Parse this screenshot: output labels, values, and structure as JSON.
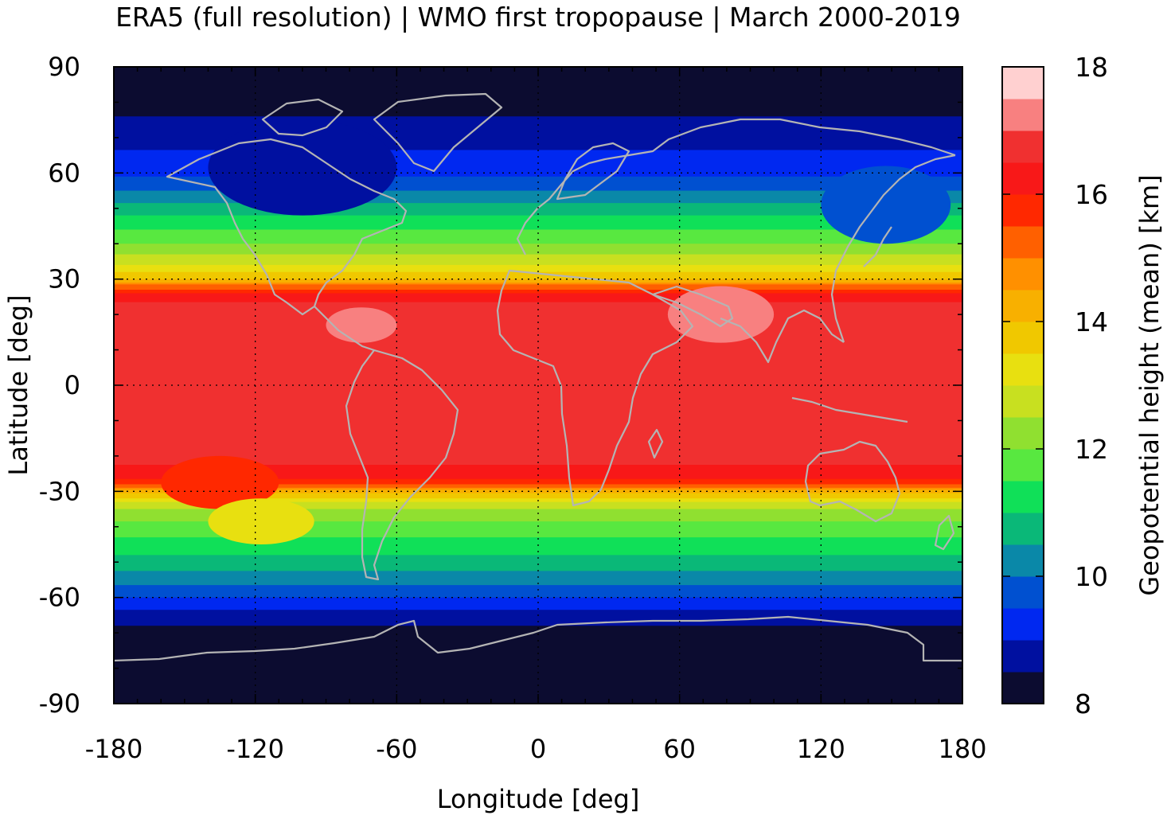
{
  "chart_data": {
    "type": "heatmap",
    "title": "ERA5 (full resolution) | WMO first tropopause | March 2000-2019",
    "xlabel": "Longitude [deg]",
    "ylabel": "Latitude [deg]",
    "xlim": [
      -180,
      180
    ],
    "ylim": [
      -90,
      90
    ],
    "x_ticks": [
      -180,
      -120,
      -60,
      0,
      60,
      120,
      180
    ],
    "y_ticks": [
      -90,
      -60,
      -30,
      0,
      30,
      60,
      90
    ],
    "x_tick_labels": [
      "-180",
      "-120",
      "-60",
      "0",
      "60",
      "120",
      "180"
    ],
    "y_tick_labels": [
      "-90",
      "-60",
      "-30",
      "0",
      "30",
      "60",
      "90"
    ],
    "grid": true,
    "coastlines": true,
    "colorbar": {
      "label": "Geopotential height (mean) [km]",
      "range": [
        8,
        18
      ],
      "ticks": [
        8,
        10,
        12,
        14,
        16,
        18
      ],
      "tick_labels": [
        "8",
        "10",
        "12",
        "14",
        "16",
        "18"
      ],
      "step": 0.5,
      "colors": [
        "#0c0c30",
        "#0010a0",
        "#0028f0",
        "#0050d0",
        "#0a88a8",
        "#0ab878",
        "#10e058",
        "#58e840",
        "#90e030",
        "#c8e020",
        "#e8e010",
        "#f0c800",
        "#f8b000",
        "#ff9000",
        "#ff6000",
        "#ff2800",
        "#f81818",
        "#f03030",
        "#f88080",
        "#ffd0d0"
      ]
    },
    "zonal_profile": {
      "lat": [
        90,
        80,
        70,
        60,
        55,
        50,
        45,
        40,
        35,
        30,
        28,
        25,
        20,
        10,
        0,
        -10,
        -20,
        -25,
        -28,
        -30,
        -33,
        -36,
        -40,
        -45,
        -50,
        -55,
        -60,
        -65,
        -70,
        -75,
        -90
      ],
      "height_km": [
        8.2,
        8.3,
        8.8,
        9.4,
        10.0,
        10.7,
        11.4,
        12.0,
        12.8,
        14.0,
        15.2,
        16.3,
        16.9,
        16.9,
        16.9,
        16.9,
        16.7,
        16.3,
        15.6,
        14.2,
        13.0,
        12.3,
        11.8,
        11.3,
        10.8,
        10.2,
        9.5,
        8.8,
        8.3,
        8.1,
        8.0
      ]
    },
    "anomalies": [
      {
        "lon": [
          -90,
          -60
        ],
        "lat": [
          12,
          22
        ],
        "height_km": 17.3
      },
      {
        "lon": [
          55,
          100
        ],
        "lat": [
          12,
          28
        ],
        "height_km": 17.3
      },
      {
        "lon": [
          -160,
          -110
        ],
        "lat": [
          -35,
          -20
        ],
        "height_km": 15.5
      },
      {
        "lon": [
          -140,
          -95
        ],
        "lat": [
          -45,
          -32
        ],
        "height_km": 13.2
      },
      {
        "lon": [
          -140,
          -60
        ],
        "lat": [
          48,
          75
        ],
        "height_km": 8.5
      },
      {
        "lon": [
          120,
          175
        ],
        "lat": [
          40,
          62
        ],
        "height_km": 9.6
      }
    ]
  }
}
